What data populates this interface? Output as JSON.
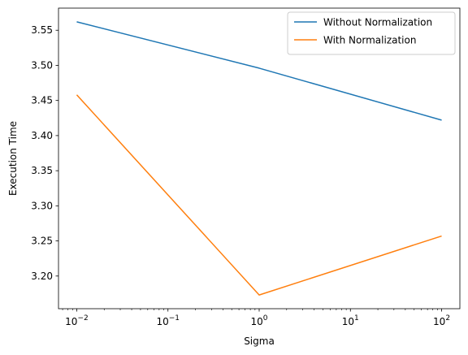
{
  "chart_data": {
    "type": "line",
    "title": "",
    "xlabel": "Sigma",
    "ylabel": "Execution Time",
    "xscale": "log",
    "x": [
      0.01,
      1,
      100
    ],
    "xlim": [
      0.00631,
      158.5
    ],
    "ylim": [
      3.1535,
      3.5815
    ],
    "grid": false,
    "legend_position": "top-right",
    "x_ticks": [
      {
        "value": 0.01,
        "base": "10",
        "exp": "−2"
      },
      {
        "value": 0.1,
        "base": "10",
        "exp": "−1"
      },
      {
        "value": 1,
        "base": "10",
        "exp": "0"
      },
      {
        "value": 10,
        "base": "10",
        "exp": "1"
      },
      {
        "value": 100,
        "base": "10",
        "exp": "2"
      }
    ],
    "y_ticks": [
      {
        "value": 3.2,
        "label": "3.20"
      },
      {
        "value": 3.25,
        "label": "3.25"
      },
      {
        "value": 3.3,
        "label": "3.30"
      },
      {
        "value": 3.35,
        "label": "3.35"
      },
      {
        "value": 3.4,
        "label": "3.40"
      },
      {
        "value": 3.45,
        "label": "3.45"
      },
      {
        "value": 3.5,
        "label": "3.50"
      },
      {
        "value": 3.55,
        "label": "3.55"
      }
    ],
    "series": [
      {
        "name": "Without Normalization",
        "color": "#1f77b4",
        "values": [
          3.562,
          3.496,
          3.422
        ]
      },
      {
        "name": "With Normalization",
        "color": "#ff7f0e",
        "values": [
          3.458,
          3.173,
          3.257
        ]
      }
    ]
  }
}
